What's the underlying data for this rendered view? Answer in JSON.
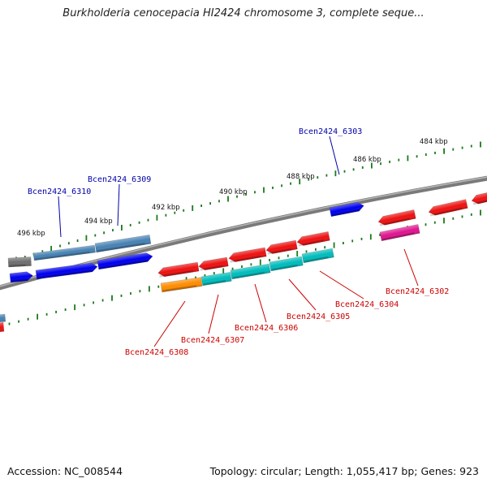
{
  "title": "Burkholderia cenocepacia HI2424 chromosome 3, complete seque...",
  "footer": {
    "accession": "Accession: NC_008544",
    "summary": "Topology: circular; Length: 1,055,417 bp; Genes: 923"
  },
  "colors": {
    "backbone": "#808080",
    "tick": "#1a7a1a",
    "label_plus": "#0000aa",
    "label_minus": "#cc0000"
  },
  "scale_labels": [
    "484 kbp",
    "486 kbp",
    "488 kbp",
    "490 kbp",
    "492 kbp",
    "494 kbp",
    "496 kbp"
  ],
  "genes": [
    {
      "label": "Bcen2424_6303",
      "strand": "+",
      "color": "#0000dd"
    },
    {
      "label": "Bcen2424_6309",
      "strand": "+",
      "color": "#4682b4"
    },
    {
      "label": "Bcen2424_6310",
      "strand": "+",
      "color": "#4682b4"
    },
    {
      "label": "Bcen2424_6302",
      "strand": "-",
      "color": "#dd1090"
    },
    {
      "label": "Bcen2424_6304",
      "strand": "-",
      "color": "#00bcbc"
    },
    {
      "label": "Bcen2424_6305",
      "strand": "-",
      "color": "#00bcbc"
    },
    {
      "label": "Bcen2424_6306",
      "strand": "-",
      "color": "#00bcbc"
    },
    {
      "label": "Bcen2424_6307",
      "strand": "-",
      "color": "#00bcbc"
    },
    {
      "label": "Bcen2424_6308",
      "strand": "-",
      "color": "#ff8c00"
    }
  ]
}
